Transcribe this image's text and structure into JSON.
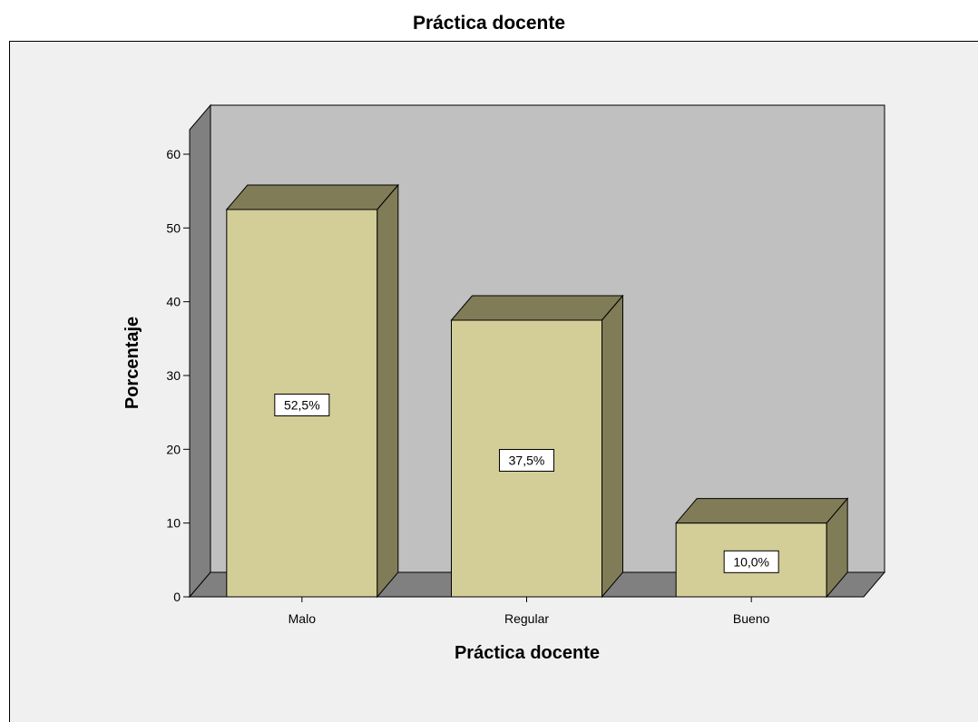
{
  "chart_data": {
    "type": "bar",
    "title": "Práctica docente",
    "xlabel": "Práctica docente",
    "ylabel": "Porcentaje",
    "categories": [
      "Malo",
      "Regular",
      "Bueno"
    ],
    "values": [
      52.5,
      37.5,
      10.0
    ],
    "data_labels": [
      "52,5%",
      "37,5%",
      "10,0%"
    ],
    "ylim": [
      0,
      60
    ],
    "yticks": [
      0,
      10,
      20,
      30,
      40,
      50,
      60
    ],
    "grid": false,
    "style": "3d",
    "colors": {
      "bar_front": "#d3cd97",
      "bar_side": "#7f7c57",
      "wall": "#c0c0c0",
      "floor": "#808080",
      "left_wall": "#808080",
      "frame_bg": "#f0f0f0"
    }
  }
}
